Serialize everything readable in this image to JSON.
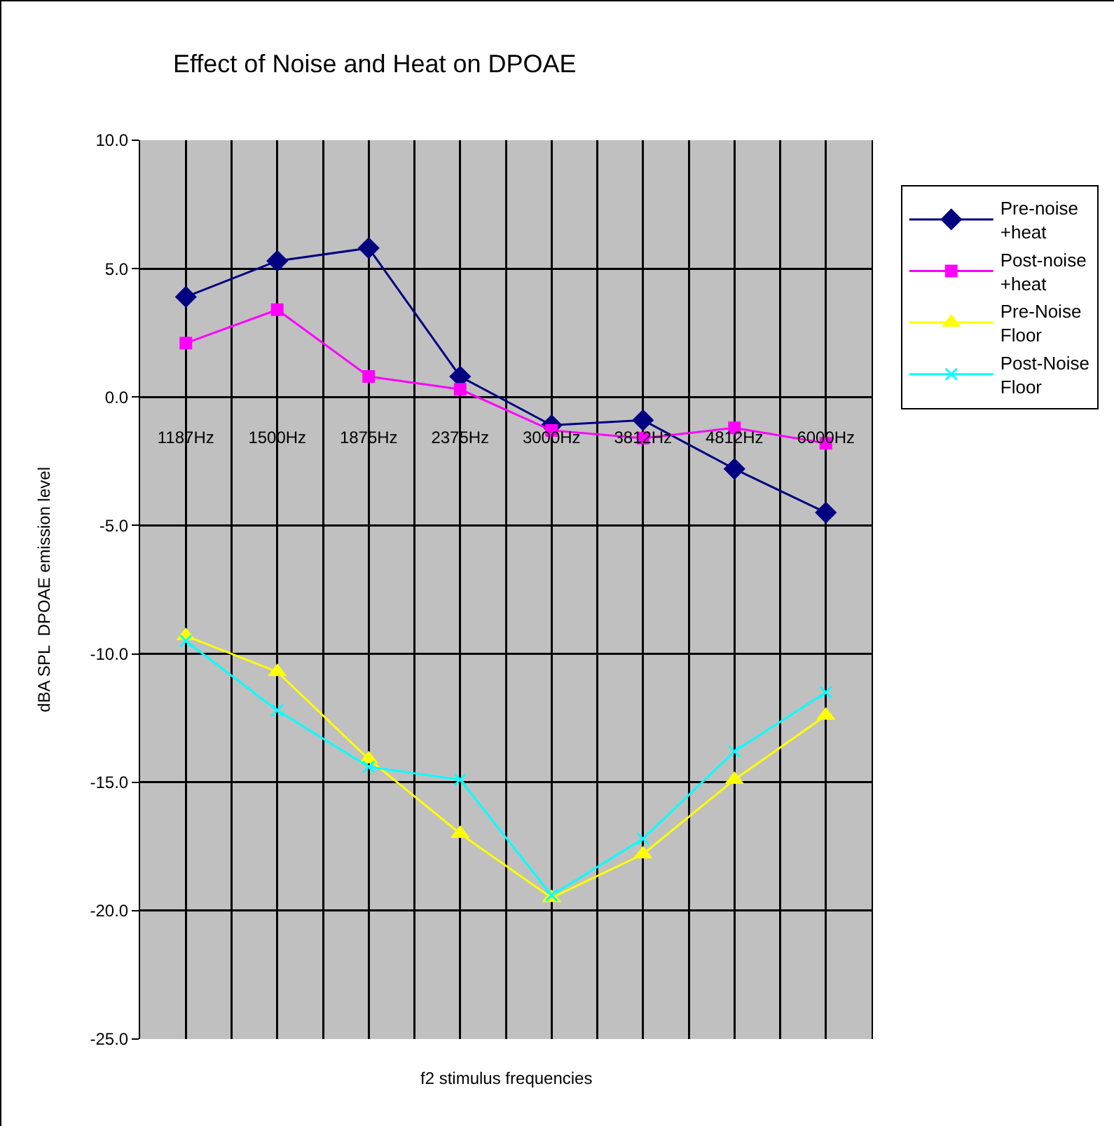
{
  "chart_data": {
    "type": "line",
    "title": "Effect of Noise and Heat on DPOAE",
    "xlabel": "f2 stimulus frequencies",
    "ylabel": "dBA SPL  DPOAE emission level",
    "categories": [
      "1187Hz",
      "1500Hz",
      "1875Hz",
      "2375Hz",
      "3000Hz",
      "3812Hz",
      "4812Hz",
      "6000Hz"
    ],
    "series": [
      {
        "name": "Pre-noise +heat",
        "color": "#000080",
        "marker": "diamond",
        "values": [
          3.9,
          5.3,
          5.8,
          0.8,
          -1.1,
          -0.9,
          -2.8,
          -4.5
        ]
      },
      {
        "name": "Post-noise +heat",
        "color": "#ff00ff",
        "marker": "square",
        "values": [
          2.1,
          3.4,
          0.8,
          0.3,
          -1.3,
          -1.6,
          -1.2,
          -1.8
        ]
      },
      {
        "name": "Pre-Noise Floor",
        "color": "#ffff00",
        "marker": "triangle",
        "values": [
          -9.3,
          -10.7,
          -14.1,
          -17.0,
          -19.5,
          -17.8,
          -14.9,
          -12.4
        ]
      },
      {
        "name": "Post-Noise Floor",
        "color": "#00ffff",
        "marker": "cross",
        "values": [
          -9.5,
          -12.2,
          -14.4,
          -14.9,
          -19.4,
          -17.2,
          -13.8,
          -11.5
        ]
      }
    ],
    "ylim": [
      -25,
      10
    ],
    "yticks": [
      {
        "value": -25,
        "label": "-25.0"
      },
      {
        "value": -20,
        "label": "-20.0"
      },
      {
        "value": -15,
        "label": "-15.0"
      },
      {
        "value": -10,
        "label": "-10.0"
      },
      {
        "value": -5,
        "label": "-5.0"
      },
      {
        "value": 0,
        "label": "0.0"
      },
      {
        "value": 5,
        "label": "5.0"
      },
      {
        "value": 10,
        "label": "10.0"
      }
    ],
    "grid": true,
    "legend": "right",
    "line_style": "solid"
  }
}
